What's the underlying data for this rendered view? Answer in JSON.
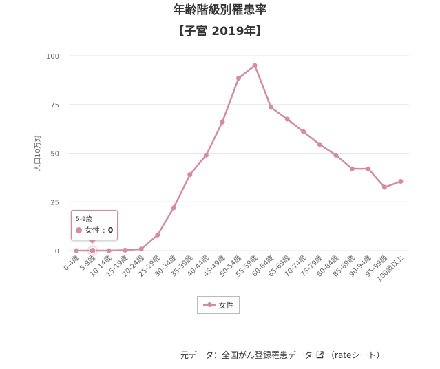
{
  "title_line1": "年齢階級別罹患率",
  "title_line2": "【子宮 2019年】",
  "chart_data": {
    "type": "line",
    "ylabel": "人口10万対",
    "ylim": [
      0,
      100
    ],
    "yticks": [
      "100",
      "75",
      "50",
      "25",
      "0"
    ],
    "categories": [
      "0-4歳",
      "5-9歳",
      "10-14歳",
      "15-19歳",
      "20-24歳",
      "25-29歳",
      "30-34歳",
      "35-39歳",
      "40-44歳",
      "45-49歳",
      "50-54歳",
      "55-59歳",
      "60-64歳",
      "65-69歳",
      "70-74歳",
      "75-79歳",
      "80-84歳",
      "85-89歳",
      "90-94歳",
      "95-99歳",
      "100歳以上"
    ],
    "series": [
      {
        "name": "女性",
        "color": "#d48ba5",
        "values": [
          0,
          0,
          0,
          0.2,
          0.8,
          8,
          22,
          39,
          49,
          66,
          88.5,
          95,
          73.5,
          67.5,
          61,
          54.5,
          49,
          42,
          42,
          32.5,
          35.5
        ]
      }
    ],
    "grid": "horizontal",
    "legend_position": "bottom"
  },
  "tooltip": {
    "category": "5-9歳",
    "series": "女性",
    "sep": ": ",
    "value": "0"
  },
  "legend": {
    "label": "女性"
  },
  "source": {
    "prefix": "元データ：",
    "link_text": "全国がん登録罹患データ",
    "suffix": "（rateシート）",
    "icon": "external-link-icon"
  }
}
